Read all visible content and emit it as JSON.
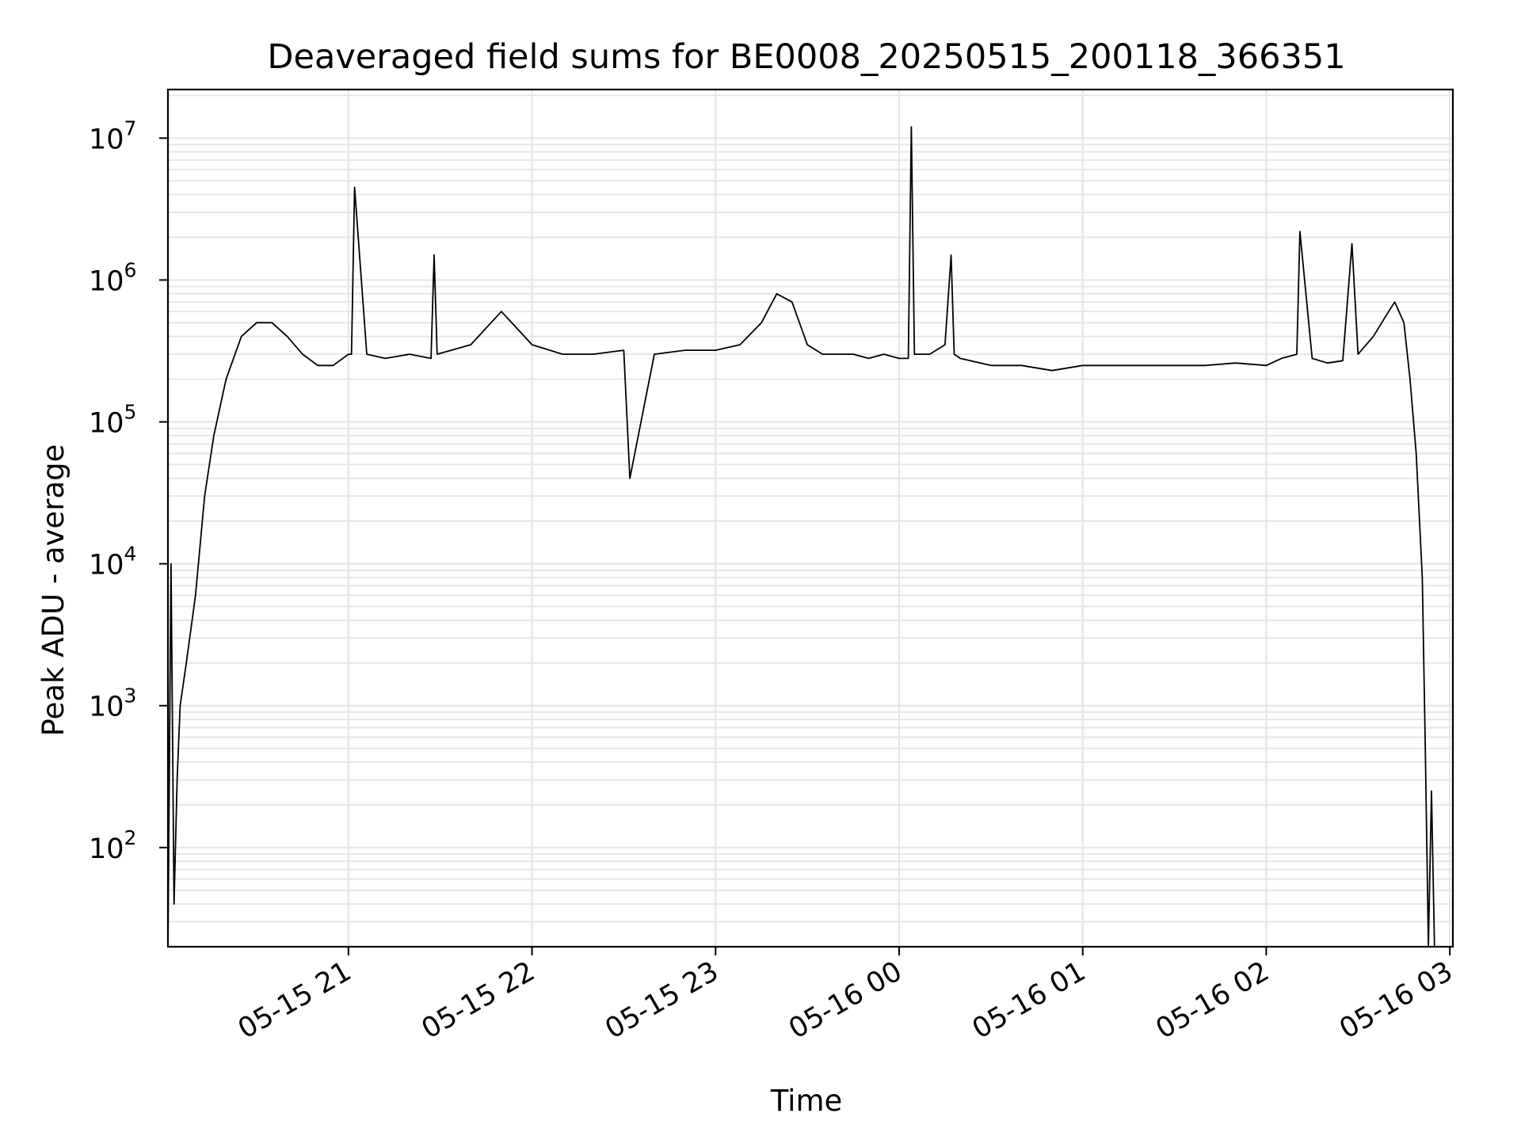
{
  "chart_data": {
    "type": "line",
    "title": "Deaveraged field sums for BE0008_20250515_200118_366351",
    "xlabel": "Time",
    "ylabel": "Peak ADU - average",
    "yscale": "log",
    "grid": true,
    "legend": "none",
    "colors": {
      "line": "#000000",
      "grid": "#e6e6e6",
      "axes": "#000000"
    },
    "xlim": [
      "2025-05-15 20:01",
      "2025-05-16 03:01"
    ],
    "ylim": [
      20,
      22000000
    ],
    "x_ticks": [
      {
        "value": "2025-05-15 21:00",
        "label": "05-15 21"
      },
      {
        "value": "2025-05-15 22:00",
        "label": "05-15 22"
      },
      {
        "value": "2025-05-15 23:00",
        "label": "05-15 23"
      },
      {
        "value": "2025-05-16 00:00",
        "label": "05-16 00"
      },
      {
        "value": "2025-05-16 01:00",
        "label": "05-16 01"
      },
      {
        "value": "2025-05-16 02:00",
        "label": "05-16 02"
      },
      {
        "value": "2025-05-16 03:00",
        "label": "05-16 03"
      }
    ],
    "y_ticks": [
      {
        "value": 100,
        "base": "10",
        "exp": "2"
      },
      {
        "value": 1000,
        "base": "10",
        "exp": "3"
      },
      {
        "value": 10000,
        "base": "10",
        "exp": "4"
      },
      {
        "value": 100000,
        "base": "10",
        "exp": "5"
      },
      {
        "value": 1000000,
        "base": "10",
        "exp": "6"
      },
      {
        "value": 10000000,
        "base": "10",
        "exp": "7"
      }
    ],
    "series": [
      {
        "x": [
          "2025-05-15 20:01",
          "2025-05-15 20:02",
          "2025-05-15 20:03",
          "2025-05-15 20:04",
          "2025-05-15 20:05",
          "2025-05-15 20:07",
          "2025-05-15 20:10",
          "2025-05-15 20:13",
          "2025-05-15 20:16",
          "2025-05-15 20:20",
          "2025-05-15 20:25",
          "2025-05-15 20:30",
          "2025-05-15 20:35",
          "2025-05-15 20:40",
          "2025-05-15 20:45",
          "2025-05-15 20:50",
          "2025-05-15 20:55",
          "2025-05-15 21:00",
          "2025-05-15 21:01",
          "2025-05-15 21:02",
          "2025-05-15 21:06",
          "2025-05-15 21:12",
          "2025-05-15 21:20",
          "2025-05-15 21:27",
          "2025-05-15 21:28",
          "2025-05-15 21:29",
          "2025-05-15 21:40",
          "2025-05-15 21:50",
          "2025-05-15 22:00",
          "2025-05-15 22:10",
          "2025-05-15 22:20",
          "2025-05-15 22:30",
          "2025-05-15 22:32",
          "2025-05-15 22:40",
          "2025-05-15 22:50",
          "2025-05-15 23:00",
          "2025-05-15 23:08",
          "2025-05-15 23:15",
          "2025-05-15 23:20",
          "2025-05-15 23:25",
          "2025-05-15 23:30",
          "2025-05-15 23:35",
          "2025-05-15 23:40",
          "2025-05-15 23:45",
          "2025-05-15 23:50",
          "2025-05-15 23:55",
          "2025-05-16 00:00",
          "2025-05-16 00:03",
          "2025-05-16 00:04",
          "2025-05-16 00:05",
          "2025-05-16 00:10",
          "2025-05-16 00:15",
          "2025-05-16 00:17",
          "2025-05-16 00:18",
          "2025-05-16 00:20",
          "2025-05-16 00:30",
          "2025-05-16 00:40",
          "2025-05-16 00:50",
          "2025-05-16 01:00",
          "2025-05-16 01:10",
          "2025-05-16 01:20",
          "2025-05-16 01:30",
          "2025-05-16 01:40",
          "2025-05-16 01:50",
          "2025-05-16 02:00",
          "2025-05-16 02:05",
          "2025-05-16 02:10",
          "2025-05-16 02:11",
          "2025-05-16 02:15",
          "2025-05-16 02:20",
          "2025-05-16 02:25",
          "2025-05-16 02:28",
          "2025-05-16 02:30",
          "2025-05-16 02:35",
          "2025-05-16 02:40",
          "2025-05-16 02:42",
          "2025-05-16 02:45",
          "2025-05-16 02:47",
          "2025-05-16 02:49",
          "2025-05-16 02:51",
          "2025-05-16 02:52",
          "2025-05-16 02:53",
          "2025-05-16 02:54",
          "2025-05-16 02:55"
        ],
        "y": [
          20,
          10000,
          40,
          300,
          1000,
          2000,
          6000,
          30000,
          80000,
          200000,
          400000,
          500000,
          500000,
          400000,
          300000,
          250000,
          250000,
          300000,
          300000,
          4500000,
          300000,
          280000,
          300000,
          280000,
          1500000,
          300000,
          350000,
          600000,
          350000,
          300000,
          300000,
          320000,
          40000,
          300000,
          320000,
          320000,
          350000,
          500000,
          800000,
          700000,
          350000,
          300000,
          300000,
          300000,
          280000,
          300000,
          280000,
          280000,
          12000000,
          300000,
          300000,
          350000,
          1500000,
          300000,
          280000,
          250000,
          250000,
          230000,
          250000,
          250000,
          250000,
          250000,
          250000,
          260000,
          250000,
          280000,
          300000,
          2200000,
          280000,
          260000,
          270000,
          1800000,
          300000,
          400000,
          600000,
          700000,
          500000,
          200000,
          60000,
          8000,
          500,
          20,
          250,
          20
        ]
      }
    ]
  }
}
